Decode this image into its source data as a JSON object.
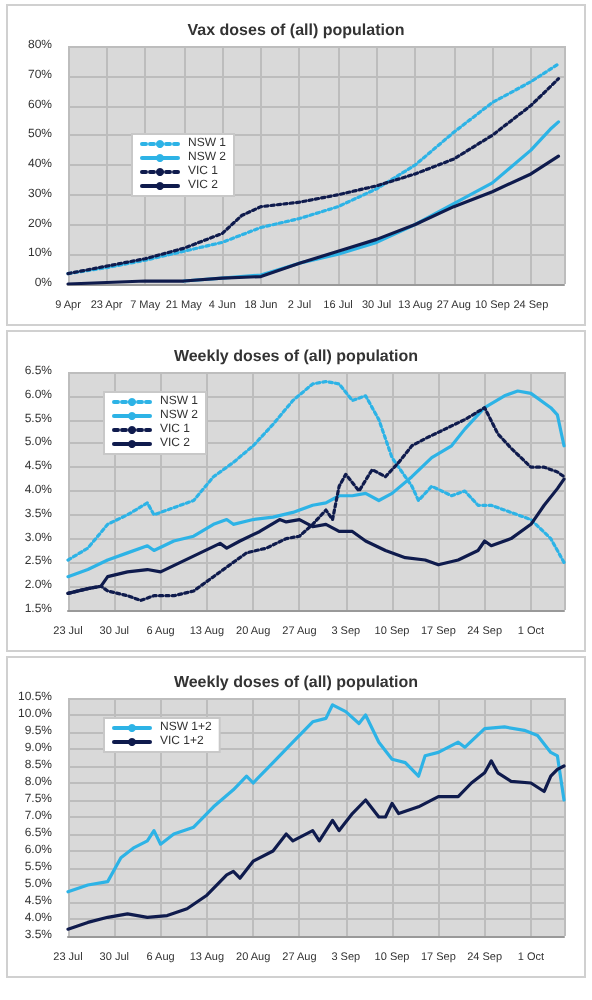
{
  "chart_data": [
    {
      "type": "line",
      "title": "Vax doses of (all) population",
      "legend": "left",
      "grid": true,
      "xlim": [
        "--04-09",
        "--10-06"
      ],
      "xticks": [
        {
          "value": "--04-09",
          "label": "9 Apr"
        },
        {
          "value": "--04-23",
          "label": "23 Apr"
        },
        {
          "value": "--05-07",
          "label": "7 May"
        },
        {
          "value": "--05-21",
          "label": "21 May"
        },
        {
          "value": "--06-04",
          "label": "4 Jun"
        },
        {
          "value": "--06-18",
          "label": "18 Jun"
        },
        {
          "value": "--07-02",
          "label": "2 Jul"
        },
        {
          "value": "--07-16",
          "label": "16 Jul"
        },
        {
          "value": "--07-30",
          "label": "30 Jul"
        },
        {
          "value": "--08-13",
          "label": "13 Aug"
        },
        {
          "value": "--08-27",
          "label": "27 Aug"
        },
        {
          "value": "--09-10",
          "label": "10 Sep"
        },
        {
          "value": "--09-24",
          "label": "24 Sep"
        }
      ],
      "ylim": [
        0,
        80
      ],
      "yticks": [
        {
          "value": 0,
          "label": "0%"
        },
        {
          "value": 10,
          "label": "10%"
        },
        {
          "value": 20,
          "label": "20%"
        },
        {
          "value": 30,
          "label": "30%"
        },
        {
          "value": 40,
          "label": "40%"
        },
        {
          "value": 50,
          "label": "50%"
        },
        {
          "value": 60,
          "label": "60%"
        },
        {
          "value": 70,
          "label": "70%"
        },
        {
          "value": 80,
          "label": "80%"
        }
      ],
      "series": [
        {
          "name": "NSW 1",
          "color": "#2db3e6",
          "line_style": "dotted",
          "x": [
            "--04-09",
            "--04-23",
            "--05-07",
            "--05-21",
            "--06-04",
            "--06-18",
            "--07-02",
            "--07-16",
            "--07-30",
            "--08-13",
            "--08-27",
            "--09-10",
            "--09-24",
            "--10-04"
          ],
          "values": [
            3.5,
            5.5,
            8,
            11,
            14,
            19,
            22,
            26,
            32,
            40,
            51,
            61,
            68,
            74
          ]
        },
        {
          "name": "NSW 2",
          "color": "#2db3e6",
          "line_style": "solid",
          "x": [
            "--05-21",
            "--06-04",
            "--06-18",
            "--07-02",
            "--07-16",
            "--07-30",
            "--08-13",
            "--08-27",
            "--09-10",
            "--09-24",
            "--10-01",
            "--10-04"
          ],
          "values": [
            1,
            2,
            3,
            7,
            10,
            14,
            20,
            27,
            34,
            45,
            52,
            54.5
          ]
        },
        {
          "name": "VIC 1",
          "color": "#0f1b4d",
          "line_style": "dotted",
          "x": [
            "--04-09",
            "--04-23",
            "--05-07",
            "--05-21",
            "--06-04",
            "--06-11",
            "--06-18",
            "--07-02",
            "--07-16",
            "--07-30",
            "--08-13",
            "--08-27",
            "--09-10",
            "--09-24",
            "--10-04"
          ],
          "values": [
            3.5,
            6,
            8.5,
            12,
            17,
            23,
            26,
            27.5,
            30,
            33,
            37,
            42,
            50,
            60,
            69
          ]
        },
        {
          "name": "VIC 2",
          "color": "#0f1b4d",
          "line_style": "solid",
          "x": [
            "--04-09",
            "--04-23",
            "--05-07",
            "--05-21",
            "--06-04",
            "--06-18",
            "--07-02",
            "--07-16",
            "--07-30",
            "--08-13",
            "--08-27",
            "--09-10",
            "--09-24",
            "--10-04"
          ],
          "values": [
            0,
            0.5,
            1,
            1,
            2,
            2.5,
            7,
            11,
            15,
            20,
            26,
            31,
            37,
            43
          ]
        }
      ]
    },
    {
      "type": "line",
      "title": "Weekly doses of (all) population",
      "legend": "top left",
      "grid": true,
      "xlim": [
        "--07-23",
        "--10-06"
      ],
      "xticks": [
        {
          "value": "--07-23",
          "label": "23 Jul"
        },
        {
          "value": "--07-30",
          "label": "30 Jul"
        },
        {
          "value": "--08-06",
          "label": "6 Aug"
        },
        {
          "value": "--08-13",
          "label": "13 Aug"
        },
        {
          "value": "--08-20",
          "label": "20 Aug"
        },
        {
          "value": "--08-27",
          "label": "27 Aug"
        },
        {
          "value": "--09-03",
          "label": "3 Sep"
        },
        {
          "value": "--09-10",
          "label": "10 Sep"
        },
        {
          "value": "--09-17",
          "label": "17 Sep"
        },
        {
          "value": "--09-24",
          "label": "24 Sep"
        },
        {
          "value": "--10-01",
          "label": "1 Oct"
        }
      ],
      "ylim": [
        1.5,
        6.5
      ],
      "yticks": [
        {
          "value": 1.5,
          "label": "1.5%"
        },
        {
          "value": 2,
          "label": "2.0%"
        },
        {
          "value": 2.5,
          "label": "2.5%"
        },
        {
          "value": 3,
          "label": "3.0%"
        },
        {
          "value": 3.5,
          "label": "3.5%"
        },
        {
          "value": 4,
          "label": "4.0%"
        },
        {
          "value": 4.5,
          "label": "4.5%"
        },
        {
          "value": 5,
          "label": "5.0%"
        },
        {
          "value": 5.5,
          "label": "5.5%"
        },
        {
          "value": 6,
          "label": "6.0%"
        },
        {
          "value": 6.5,
          "label": "6.5%"
        }
      ],
      "series": [
        {
          "name": "NSW 1",
          "color": "#2db3e6",
          "line_style": "dotted",
          "x": [
            "--07-23",
            "--07-26",
            "--07-29",
            "--08-01",
            "--08-04",
            "--08-05",
            "--08-08",
            "--08-11",
            "--08-14",
            "--08-17",
            "--08-20",
            "--08-23",
            "--08-26",
            "--08-29",
            "--08-31",
            "--09-02",
            "--09-04",
            "--09-06",
            "--09-08",
            "--09-10",
            "--09-13",
            "--09-14",
            "--09-16",
            "--09-19",
            "--09-21",
            "--09-23",
            "--09-25",
            "--09-28",
            "--10-01",
            "--10-04",
            "--10-06"
          ],
          "values": [
            2.55,
            2.8,
            3.3,
            3.5,
            3.75,
            3.5,
            3.65,
            3.8,
            4.3,
            4.6,
            4.95,
            5.4,
            5.9,
            6.25,
            6.3,
            6.25,
            5.9,
            6.0,
            5.5,
            4.7,
            4.1,
            3.8,
            4.1,
            3.9,
            4.0,
            3.7,
            3.7,
            3.55,
            3.4,
            3.0,
            2.5
          ]
        },
        {
          "name": "NSW 2",
          "color": "#2db3e6",
          "line_style": "solid",
          "x": [
            "--07-23",
            "--07-26",
            "--07-29",
            "--08-01",
            "--08-04",
            "--08-05",
            "--08-08",
            "--08-11",
            "--08-14",
            "--08-16",
            "--08-17",
            "--08-20",
            "--08-23",
            "--08-26",
            "--08-29",
            "--08-31",
            "--09-02",
            "--09-04",
            "--09-06",
            "--09-08",
            "--09-10",
            "--09-13",
            "--09-16",
            "--09-19",
            "--09-21",
            "--09-24",
            "--09-27",
            "--09-29",
            "--10-01",
            "--10-04",
            "--10-05",
            "--10-06"
          ],
          "values": [
            2.2,
            2.35,
            2.55,
            2.7,
            2.85,
            2.75,
            2.95,
            3.05,
            3.3,
            3.4,
            3.3,
            3.4,
            3.45,
            3.55,
            3.7,
            3.75,
            3.9,
            3.9,
            3.95,
            3.8,
            3.95,
            4.3,
            4.7,
            4.95,
            5.3,
            5.75,
            6.0,
            6.1,
            6.05,
            5.75,
            5.6,
            4.95
          ]
        },
        {
          "name": "VIC 1",
          "color": "#0f1b4d",
          "line_style": "dotted",
          "x": [
            "--07-23",
            "--07-26",
            "--07-28",
            "--07-29",
            "--08-01",
            "--08-03",
            "--08-05",
            "--08-08",
            "--08-11",
            "--08-14",
            "--08-17",
            "--08-19",
            "--08-22",
            "--08-25",
            "--08-27",
            "--08-29",
            "--08-31",
            "--09-01",
            "--09-02",
            "--09-03",
            "--09-05",
            "--09-07",
            "--09-09",
            "--09-11",
            "--09-13",
            "--09-15",
            "--09-18",
            "--09-21",
            "--09-24",
            "--09-26",
            "--09-28",
            "--10-01",
            "--10-03",
            "--10-05",
            "--10-06"
          ],
          "values": [
            1.85,
            1.95,
            2.0,
            1.9,
            1.8,
            1.7,
            1.8,
            1.8,
            1.9,
            2.2,
            2.5,
            2.7,
            2.8,
            3.0,
            3.05,
            3.3,
            3.6,
            3.4,
            4.1,
            4.35,
            4.0,
            4.45,
            4.3,
            4.6,
            4.95,
            5.1,
            5.3,
            5.5,
            5.75,
            5.2,
            4.9,
            4.5,
            4.5,
            4.4,
            4.3
          ]
        },
        {
          "name": "VIC 2",
          "color": "#0f1b4d",
          "line_style": "solid",
          "x": [
            "--07-23",
            "--07-26",
            "--07-28",
            "--07-29",
            "--08-01",
            "--08-04",
            "--08-06",
            "--08-09",
            "--08-12",
            "--08-15",
            "--08-16",
            "--08-18",
            "--08-21",
            "--08-24",
            "--08-25",
            "--08-27",
            "--08-29",
            "--08-31",
            "--09-02",
            "--09-04",
            "--09-06",
            "--09-09",
            "--09-12",
            "--09-15",
            "--09-17",
            "--09-20",
            "--09-23",
            "--09-24",
            "--09-25",
            "--09-28",
            "--10-01",
            "--10-03",
            "--10-05",
            "--10-06"
          ],
          "values": [
            1.85,
            1.95,
            2.0,
            2.2,
            2.3,
            2.35,
            2.3,
            2.5,
            2.7,
            2.9,
            2.8,
            2.95,
            3.15,
            3.4,
            3.35,
            3.4,
            3.25,
            3.3,
            3.15,
            3.15,
            2.95,
            2.75,
            2.6,
            2.55,
            2.45,
            2.55,
            2.75,
            2.95,
            2.85,
            3.0,
            3.3,
            3.7,
            4.05,
            4.25
          ]
        }
      ]
    },
    {
      "type": "line",
      "title": "Weekly doses of (all) population",
      "legend": "top left",
      "grid": true,
      "xlim": [
        "--07-23",
        "--10-06"
      ],
      "xticks": [
        {
          "value": "--07-23",
          "label": "23 Jul"
        },
        {
          "value": "--07-30",
          "label": "30 Jul"
        },
        {
          "value": "--08-06",
          "label": "6 Aug"
        },
        {
          "value": "--08-13",
          "label": "13 Aug"
        },
        {
          "value": "--08-20",
          "label": "20 Aug"
        },
        {
          "value": "--08-27",
          "label": "27 Aug"
        },
        {
          "value": "--09-03",
          "label": "3 Sep"
        },
        {
          "value": "--09-10",
          "label": "10 Sep"
        },
        {
          "value": "--09-17",
          "label": "17 Sep"
        },
        {
          "value": "--09-24",
          "label": "24 Sep"
        },
        {
          "value": "--10-01",
          "label": "1 Oct"
        }
      ],
      "ylim": [
        3.5,
        10.5
      ],
      "yticks": [
        {
          "value": 3.5,
          "label": "3.5%"
        },
        {
          "value": 4,
          "label": "4.0%"
        },
        {
          "value": 4.5,
          "label": "4.5%"
        },
        {
          "value": 5,
          "label": "5.0%"
        },
        {
          "value": 5.5,
          "label": "5.5%"
        },
        {
          "value": 6,
          "label": "6.0%"
        },
        {
          "value": 6.5,
          "label": "6.5%"
        },
        {
          "value": 7,
          "label": "7.0%"
        },
        {
          "value": 7.5,
          "label": "7.5%"
        },
        {
          "value": 8,
          "label": "8.0%"
        },
        {
          "value": 8.5,
          "label": "8.5%"
        },
        {
          "value": 9,
          "label": "9.0%"
        },
        {
          "value": 9.5,
          "label": "9.5%"
        },
        {
          "value": 10,
          "label": "10.0%"
        },
        {
          "value": 10.5,
          "label": "10.5%"
        }
      ],
      "series": [
        {
          "name": "NSW 1+2",
          "color": "#2db3e6",
          "line_style": "solid",
          "x": [
            "--07-23",
            "--07-26",
            "--07-29",
            "--07-31",
            "--08-02",
            "--08-04",
            "--08-05",
            "--08-06",
            "--08-08",
            "--08-11",
            "--08-14",
            "--08-17",
            "--08-19",
            "--08-20",
            "--08-23",
            "--08-26",
            "--08-29",
            "--08-31",
            "--09-01",
            "--09-03",
            "--09-05",
            "--09-06",
            "--09-08",
            "--09-10",
            "--09-12",
            "--09-14",
            "--09-15",
            "--09-17",
            "--09-20",
            "--09-21",
            "--09-24",
            "--09-27",
            "--09-30",
            "--10-02",
            "--10-04",
            "--10-05",
            "--10-06"
          ],
          "values": [
            4.8,
            5.0,
            5.1,
            5.8,
            6.1,
            6.3,
            6.6,
            6.2,
            6.5,
            6.7,
            7.3,
            7.8,
            8.2,
            8.0,
            8.6,
            9.2,
            9.8,
            9.9,
            10.3,
            10.1,
            9.75,
            10.0,
            9.2,
            8.7,
            8.6,
            8.2,
            8.8,
            8.9,
            9.2,
            9.05,
            9.6,
            9.65,
            9.55,
            9.4,
            8.9,
            8.8,
            7.5
          ]
        },
        {
          "name": "VIC 1+2",
          "color": "#0f1b4d",
          "line_style": "solid",
          "x": [
            "--07-23",
            "--07-26",
            "--07-29",
            "--08-01",
            "--08-04",
            "--08-07",
            "--08-10",
            "--08-13",
            "--08-16",
            "--08-17",
            "--08-18",
            "--08-20",
            "--08-23",
            "--08-25",
            "--08-26",
            "--08-29",
            "--08-30",
            "--09-01",
            "--09-02",
            "--09-04",
            "--09-06",
            "--09-08",
            "--09-09",
            "--09-10",
            "--09-11",
            "--09-14",
            "--09-17",
            "--09-20",
            "--09-22",
            "--09-24",
            "--09-25",
            "--09-26",
            "--09-28",
            "--10-01",
            "--10-03",
            "--10-04",
            "--10-05",
            "--10-06"
          ],
          "values": [
            3.7,
            3.9,
            4.05,
            4.15,
            4.05,
            4.1,
            4.3,
            4.7,
            5.3,
            5.4,
            5.2,
            5.7,
            6.0,
            6.5,
            6.3,
            6.6,
            6.3,
            6.9,
            6.6,
            7.1,
            7.5,
            7.0,
            7.0,
            7.4,
            7.1,
            7.3,
            7.6,
            7.6,
            8.0,
            8.3,
            8.65,
            8.3,
            8.05,
            8.0,
            7.75,
            8.2,
            8.4,
            8.5
          ]
        }
      ]
    }
  ]
}
